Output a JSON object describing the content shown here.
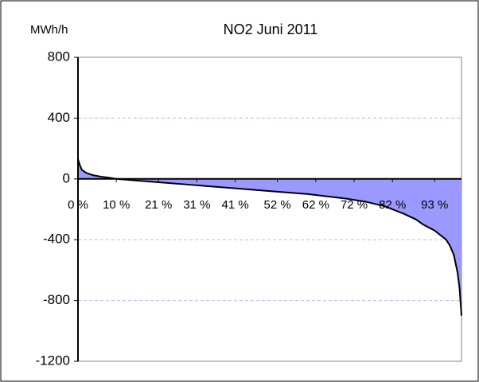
{
  "chart_data": {
    "type": "area",
    "title": "NO2  Juni 2011",
    "y_label": "MWh/h",
    "x": [
      0,
      0.5,
      1,
      2,
      3,
      4,
      6,
      8,
      10,
      15,
      20,
      30,
      40,
      50,
      60,
      70,
      75,
      80,
      85,
      88,
      90,
      93,
      95,
      96,
      97,
      98,
      99,
      99.5,
      100
    ],
    "series": [
      {
        "name": "NO2",
        "color": "#9999ff",
        "line_color": "#000000",
        "values": [
          130,
          90,
          60,
          42,
          32,
          24,
          15,
          8,
          0,
          -10,
          -20,
          -40,
          -60,
          -80,
          -100,
          -130,
          -150,
          -180,
          -230,
          -265,
          -300,
          -340,
          -380,
          -400,
          -440,
          -500,
          -620,
          -720,
          -900
        ]
      }
    ],
    "xlim": [
      0,
      100
    ],
    "xticks": [
      {
        "value": 0,
        "label": "0 %"
      },
      {
        "value": 10,
        "label": "10 %"
      },
      {
        "value": 21,
        "label": "21 %"
      },
      {
        "value": 31,
        "label": "31 %"
      },
      {
        "value": 41,
        "label": "41 %"
      },
      {
        "value": 52,
        "label": "52 %"
      },
      {
        "value": 62,
        "label": "62 %"
      },
      {
        "value": 72,
        "label": "72 %"
      },
      {
        "value": 82,
        "label": "82 %"
      },
      {
        "value": 93,
        "label": "93 %"
      }
    ],
    "ylim": [
      -1200,
      800
    ],
    "yticks": [
      800,
      400,
      0,
      -400,
      -800,
      -1200
    ],
    "grid": true
  }
}
